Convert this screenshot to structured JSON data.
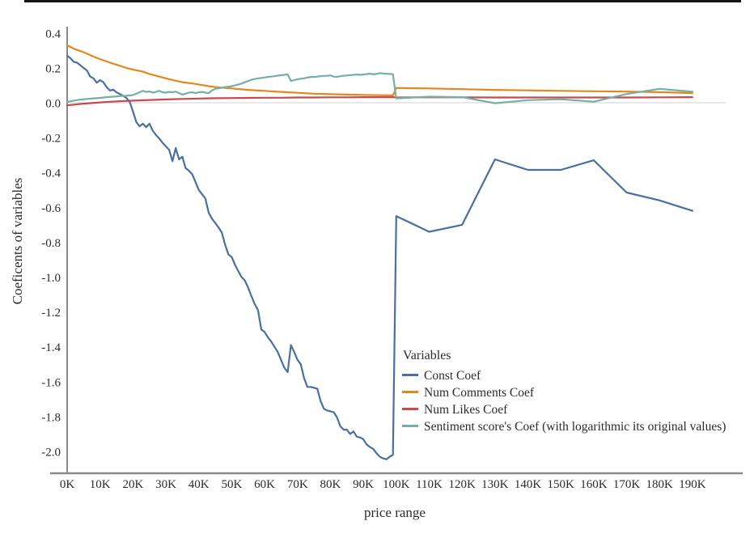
{
  "figure": {
    "background": "#ffffff",
    "top_rule_color": "#141414"
  },
  "chart_data": {
    "type": "line",
    "title": "",
    "xlabel": "price range",
    "ylabel": "Coeficents of variables",
    "xlim": [
      0,
      200
    ],
    "ylim": [
      -2.1,
      0.45
    ],
    "grid": "zero-line-only",
    "x_tick_labels": [
      "0K",
      "10K",
      "20K",
      "30K",
      "40K",
      "50K",
      "60K",
      "70K",
      "80K",
      "90K",
      "100K",
      "110K",
      "120K",
      "130K",
      "140K",
      "150K",
      "160K",
      "170K",
      "180K",
      "190K"
    ],
    "x_tick_values": [
      0,
      10,
      20,
      30,
      40,
      50,
      60,
      70,
      80,
      90,
      100,
      110,
      120,
      130,
      140,
      150,
      160,
      170,
      180,
      190
    ],
    "y_tick_labels": [
      "0.4",
      "0.2",
      "0.0",
      "-0.2",
      "-0.4",
      "-0.6",
      "-0.8",
      "-1.0",
      "-1.2",
      "-1.4",
      "-1.6",
      "-1.8",
      "-2.0"
    ],
    "y_tick_values": [
      0.4,
      0.2,
      0.0,
      -0.2,
      -0.4,
      -0.6,
      -0.8,
      -1.0,
      -1.2,
      -1.4,
      -1.6,
      -1.8,
      -2.0
    ],
    "legend": {
      "title": "Variables",
      "position": "center-right"
    },
    "colors": {
      "axis_text": "#2b2b2b",
      "left_spine": "#4a4a4a",
      "bottom_spine": "#8a8a8a",
      "zero_line": "#d9d9d9"
    },
    "series": [
      {
        "name": "Const Coef",
        "color": "#4a6fa5",
        "points": [
          [
            0,
            0.27
          ],
          [
            1,
            0.255
          ],
          [
            2,
            0.235
          ],
          [
            3,
            0.23
          ],
          [
            4,
            0.215
          ],
          [
            5,
            0.2
          ],
          [
            6,
            0.185
          ],
          [
            7,
            0.15
          ],
          [
            8,
            0.14
          ],
          [
            9,
            0.115
          ],
          [
            10,
            0.13
          ],
          [
            11,
            0.118
          ],
          [
            12,
            0.09
          ],
          [
            13,
            0.07
          ],
          [
            14,
            0.075
          ],
          [
            15,
            0.06
          ],
          [
            16,
            0.05
          ],
          [
            17,
            0.04
          ],
          [
            18,
            0.028
          ],
          [
            19,
            0.005
          ],
          [
            20,
            -0.05
          ],
          [
            21,
            -0.11
          ],
          [
            22,
            -0.135
          ],
          [
            23,
            -0.12
          ],
          [
            24,
            -0.14
          ],
          [
            25,
            -0.12
          ],
          [
            26,
            -0.16
          ],
          [
            27,
            -0.185
          ],
          [
            28,
            -0.205
          ],
          [
            29,
            -0.23
          ],
          [
            30,
            -0.25
          ],
          [
            31,
            -0.27
          ],
          [
            32,
            -0.335
          ],
          [
            33,
            -0.26
          ],
          [
            34,
            -0.325
          ],
          [
            35,
            -0.31
          ],
          [
            36,
            -0.375
          ],
          [
            37,
            -0.39
          ],
          [
            38,
            -0.41
          ],
          [
            39,
            -0.455
          ],
          [
            40,
            -0.5
          ],
          [
            41,
            -0.525
          ],
          [
            42,
            -0.55
          ],
          [
            43,
            -0.63
          ],
          [
            44,
            -0.665
          ],
          [
            45,
            -0.69
          ],
          [
            46,
            -0.715
          ],
          [
            47,
            -0.745
          ],
          [
            48,
            -0.815
          ],
          [
            49,
            -0.87
          ],
          [
            50,
            -0.885
          ],
          [
            51,
            -0.93
          ],
          [
            52,
            -0.965
          ],
          [
            53,
            -1.0
          ],
          [
            54,
            -1.02
          ],
          [
            55,
            -1.06
          ],
          [
            56,
            -1.11
          ],
          [
            57,
            -1.155
          ],
          [
            58,
            -1.19
          ],
          [
            59,
            -1.3
          ],
          [
            60,
            -1.315
          ],
          [
            61,
            -1.345
          ],
          [
            62,
            -1.37
          ],
          [
            63,
            -1.4
          ],
          [
            64,
            -1.43
          ],
          [
            65,
            -1.475
          ],
          [
            66,
            -1.52
          ],
          [
            67,
            -1.545
          ],
          [
            68,
            -1.39
          ],
          [
            69,
            -1.43
          ],
          [
            70,
            -1.475
          ],
          [
            71,
            -1.5
          ],
          [
            72,
            -1.58
          ],
          [
            73,
            -1.63
          ],
          [
            74,
            -1.63
          ],
          [
            75,
            -1.635
          ],
          [
            76,
            -1.64
          ],
          [
            77,
            -1.71
          ],
          [
            78,
            -1.755
          ],
          [
            79,
            -1.765
          ],
          [
            80,
            -1.77
          ],
          [
            81,
            -1.775
          ],
          [
            82,
            -1.805
          ],
          [
            83,
            -1.855
          ],
          [
            84,
            -1.875
          ],
          [
            85,
            -1.875
          ],
          [
            86,
            -1.9
          ],
          [
            87,
            -1.885
          ],
          [
            88,
            -1.915
          ],
          [
            89,
            -1.92
          ],
          [
            90,
            -1.93
          ],
          [
            91,
            -1.96
          ],
          [
            92,
            -1.975
          ],
          [
            93,
            -1.985
          ],
          [
            94,
            -2.01
          ],
          [
            95,
            -2.03
          ],
          [
            96,
            -2.04
          ],
          [
            97,
            -2.045
          ],
          [
            98,
            -2.03
          ],
          [
            99,
            -2.02
          ],
          [
            100,
            -0.65
          ],
          [
            110,
            -0.74
          ],
          [
            120,
            -0.7
          ],
          [
            130,
            -0.325
          ],
          [
            140,
            -0.385
          ],
          [
            150,
            -0.385
          ],
          [
            160,
            -0.33
          ],
          [
            170,
            -0.515
          ],
          [
            180,
            -0.56
          ],
          [
            190,
            -0.62
          ]
        ]
      },
      {
        "name": "Num Comments Coef",
        "color": "#e6861e",
        "points": [
          [
            0,
            0.33
          ],
          [
            2,
            0.31
          ],
          [
            5,
            0.29
          ],
          [
            8,
            0.265
          ],
          [
            10,
            0.25
          ],
          [
            13,
            0.23
          ],
          [
            15,
            0.218
          ],
          [
            18,
            0.2
          ],
          [
            20,
            0.19
          ],
          [
            23,
            0.178
          ],
          [
            25,
            0.165
          ],
          [
            28,
            0.15
          ],
          [
            30,
            0.14
          ],
          [
            33,
            0.126
          ],
          [
            35,
            0.118
          ],
          [
            38,
            0.111
          ],
          [
            40,
            0.105
          ],
          [
            43,
            0.095
          ],
          [
            45,
            0.09
          ],
          [
            48,
            0.085
          ],
          [
            50,
            0.082
          ],
          [
            55,
            0.074
          ],
          [
            60,
            0.068
          ],
          [
            65,
            0.062
          ],
          [
            70,
            0.057
          ],
          [
            75,
            0.052
          ],
          [
            80,
            0.049
          ],
          [
            85,
            0.047
          ],
          [
            90,
            0.045
          ],
          [
            95,
            0.043
          ],
          [
            99,
            0.042
          ],
          [
            100,
            0.085
          ],
          [
            110,
            0.082
          ],
          [
            120,
            0.078
          ],
          [
            130,
            0.074
          ],
          [
            140,
            0.071
          ],
          [
            150,
            0.068
          ],
          [
            160,
            0.066
          ],
          [
            170,
            0.064
          ],
          [
            180,
            0.061
          ],
          [
            190,
            0.055
          ]
        ]
      },
      {
        "name": "Num Likes Coef",
        "color": "#c9494e",
        "points": [
          [
            0,
            -0.015
          ],
          [
            5,
            -0.005
          ],
          [
            10,
            0.002
          ],
          [
            15,
            0.008
          ],
          [
            20,
            0.012
          ],
          [
            25,
            0.016
          ],
          [
            30,
            0.019
          ],
          [
            35,
            0.022
          ],
          [
            40,
            0.024
          ],
          [
            45,
            0.026
          ],
          [
            50,
            0.027
          ],
          [
            55,
            0.028
          ],
          [
            60,
            0.029
          ],
          [
            65,
            0.029
          ],
          [
            70,
            0.03
          ],
          [
            75,
            0.03
          ],
          [
            80,
            0.031
          ],
          [
            85,
            0.031
          ],
          [
            90,
            0.032
          ],
          [
            95,
            0.032
          ],
          [
            99,
            0.032
          ],
          [
            100,
            0.03
          ],
          [
            110,
            0.031
          ],
          [
            120,
            0.031
          ],
          [
            130,
            0.03
          ],
          [
            140,
            0.03
          ],
          [
            150,
            0.03
          ],
          [
            160,
            0.03
          ],
          [
            170,
            0.03
          ],
          [
            180,
            0.031
          ],
          [
            190,
            0.032
          ]
        ]
      },
      {
        "name": "Sentiment score's Coef (with logarithmic its original values)",
        "color": "#74b0a6",
        "points": [
          [
            0,
            0.005
          ],
          [
            2,
            0.012
          ],
          [
            4,
            0.018
          ],
          [
            6,
            0.022
          ],
          [
            8,
            0.025
          ],
          [
            10,
            0.028
          ],
          [
            12,
            0.032
          ],
          [
            14,
            0.035
          ],
          [
            16,
            0.038
          ],
          [
            18,
            0.04
          ],
          [
            20,
            0.044
          ],
          [
            21,
            0.052
          ],
          [
            22,
            0.06
          ],
          [
            23,
            0.068
          ],
          [
            24,
            0.062
          ],
          [
            25,
            0.065
          ],
          [
            26,
            0.058
          ],
          [
            27,
            0.062
          ],
          [
            28,
            0.068
          ],
          [
            29,
            0.06
          ],
          [
            30,
            0.058
          ],
          [
            31,
            0.062
          ],
          [
            32,
            0.06
          ],
          [
            33,
            0.064
          ],
          [
            34,
            0.055
          ],
          [
            35,
            0.047
          ],
          [
            36,
            0.052
          ],
          [
            37,
            0.058
          ],
          [
            38,
            0.06
          ],
          [
            39,
            0.055
          ],
          [
            40,
            0.06
          ],
          [
            41,
            0.062
          ],
          [
            42,
            0.058
          ],
          [
            43,
            0.055
          ],
          [
            44,
            0.07
          ],
          [
            45,
            0.08
          ],
          [
            46,
            0.083
          ],
          [
            47,
            0.086
          ],
          [
            48,
            0.09
          ],
          [
            49,
            0.092
          ],
          [
            50,
            0.095
          ],
          [
            51,
            0.1
          ],
          [
            52,
            0.105
          ],
          [
            53,
            0.11
          ],
          [
            54,
            0.118
          ],
          [
            55,
            0.125
          ],
          [
            56,
            0.132
          ],
          [
            57,
            0.136
          ],
          [
            58,
            0.14
          ],
          [
            59,
            0.142
          ],
          [
            60,
            0.145
          ],
          [
            61,
            0.148
          ],
          [
            62,
            0.15
          ],
          [
            63,
            0.152
          ],
          [
            64,
            0.156
          ],
          [
            65,
            0.158
          ],
          [
            66,
            0.16
          ],
          [
            67,
            0.163
          ],
          [
            68,
            0.125
          ],
          [
            69,
            0.13
          ],
          [
            70,
            0.135
          ],
          [
            71,
            0.138
          ],
          [
            72,
            0.14
          ],
          [
            73,
            0.145
          ],
          [
            74,
            0.148
          ],
          [
            75,
            0.148
          ],
          [
            76,
            0.15
          ],
          [
            77,
            0.152
          ],
          [
            78,
            0.154
          ],
          [
            79,
            0.155
          ],
          [
            80,
            0.157
          ],
          [
            81,
            0.15
          ],
          [
            82,
            0.148
          ],
          [
            83,
            0.152
          ],
          [
            84,
            0.155
          ],
          [
            85,
            0.157
          ],
          [
            86,
            0.158
          ],
          [
            87,
            0.16
          ],
          [
            88,
            0.162
          ],
          [
            89,
            0.16
          ],
          [
            90,
            0.162
          ],
          [
            91,
            0.164
          ],
          [
            92,
            0.167
          ],
          [
            93,
            0.163
          ],
          [
            94,
            0.165
          ],
          [
            95,
            0.17
          ],
          [
            96,
            0.168
          ],
          [
            97,
            0.166
          ],
          [
            98,
            0.165
          ],
          [
            99,
            0.164
          ],
          [
            100,
            0.025
          ],
          [
            110,
            0.035
          ],
          [
            120,
            0.032
          ],
          [
            130,
            -0.003
          ],
          [
            140,
            0.015
          ],
          [
            150,
            0.02
          ],
          [
            160,
            0.006
          ],
          [
            170,
            0.05
          ],
          [
            180,
            0.08
          ],
          [
            190,
            0.063
          ]
        ]
      }
    ]
  }
}
